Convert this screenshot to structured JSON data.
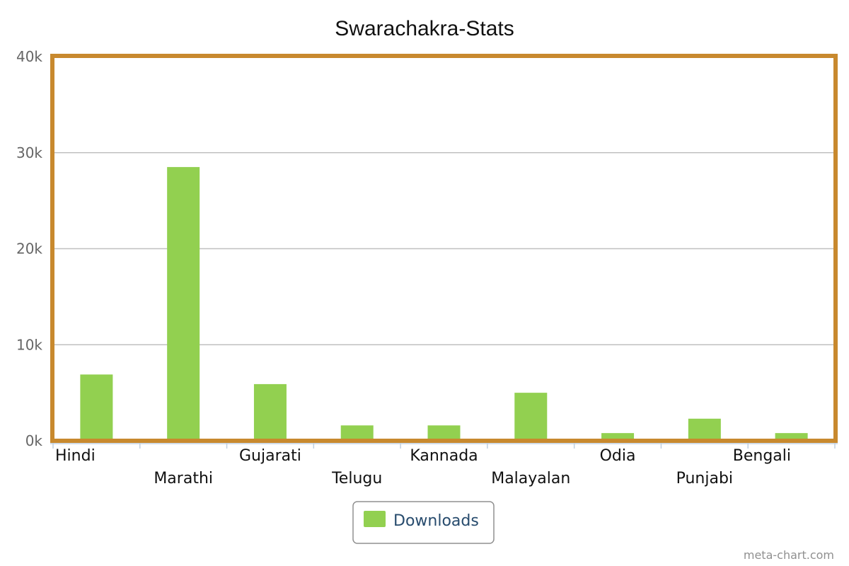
{
  "chart_data": {
    "type": "bar",
    "title": "Swarachakra-Stats",
    "categories": [
      "Hindi",
      "Marathi",
      "Gujarati",
      "Telugu",
      "Kannada",
      "Malayalan",
      "Odia",
      "Punjabi",
      "Bengali"
    ],
    "series": [
      {
        "name": "Downloads",
        "values": [
          6900,
          28500,
          5900,
          1600,
          1600,
          5000,
          800,
          2300,
          800
        ]
      }
    ],
    "yticks": [
      "0k",
      "10k",
      "20k",
      "30k",
      "40k"
    ],
    "ylim": [
      0,
      40000
    ],
    "xlabel": "",
    "ylabel": "",
    "grid": true,
    "legend_position": "bottom-center"
  },
  "credit": "meta-chart.com",
  "colors": {
    "bar": "#92d050",
    "frame": "#c8892e",
    "grid": "#c0c0c0",
    "axis": "#c0d0e0",
    "legend_text": "#274b6d",
    "legend_border": "#909090"
  }
}
